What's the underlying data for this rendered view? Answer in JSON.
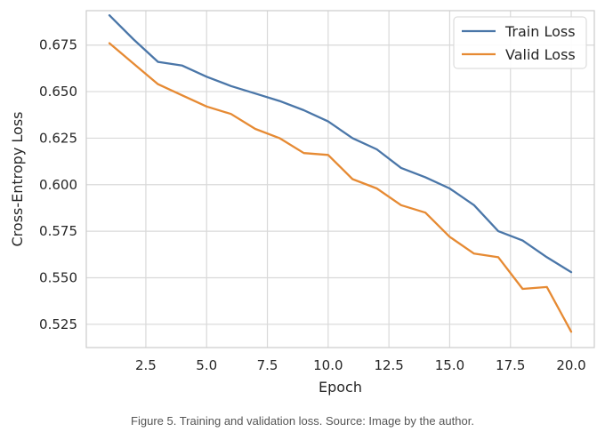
{
  "chart_data": {
    "type": "line",
    "xlabel": "Epoch",
    "ylabel": "Cross-Entropy Loss",
    "xlim": [
      0.05,
      20.95
    ],
    "ylim": [
      0.5125,
      0.6935
    ],
    "x_ticks": [
      2.5,
      5.0,
      7.5,
      10.0,
      12.5,
      15.0,
      17.5,
      20.0
    ],
    "x_tick_labels": [
      "2.5",
      "5.0",
      "7.5",
      "10.0",
      "12.5",
      "15.0",
      "17.5",
      "20.0"
    ],
    "y_ticks": [
      0.525,
      0.55,
      0.575,
      0.6,
      0.625,
      0.65,
      0.675
    ],
    "y_tick_labels": [
      "0.525",
      "0.550",
      "0.575",
      "0.600",
      "0.625",
      "0.650",
      "0.675"
    ],
    "grid": true,
    "legend_position": "top-right",
    "x": [
      1,
      2,
      3,
      4,
      5,
      6,
      7,
      8,
      9,
      10,
      11,
      12,
      13,
      14,
      15,
      16,
      17,
      18,
      19,
      20
    ],
    "series": [
      {
        "name": "Train Loss",
        "color": "#4a76a8",
        "values": [
          0.691,
          0.678,
          0.666,
          0.664,
          0.658,
          0.653,
          0.649,
          0.645,
          0.64,
          0.634,
          0.625,
          0.619,
          0.609,
          0.604,
          0.598,
          0.589,
          0.575,
          0.57,
          0.561,
          0.553
        ]
      },
      {
        "name": "Valid Loss",
        "color": "#e68a33",
        "values": [
          0.676,
          0.665,
          0.654,
          0.648,
          0.642,
          0.638,
          0.63,
          0.625,
          0.617,
          0.616,
          0.603,
          0.598,
          0.589,
          0.585,
          0.572,
          0.563,
          0.561,
          0.544,
          0.545,
          0.521
        ]
      }
    ]
  },
  "caption": "Figure 5. Training and validation loss. Source: Image by the author."
}
